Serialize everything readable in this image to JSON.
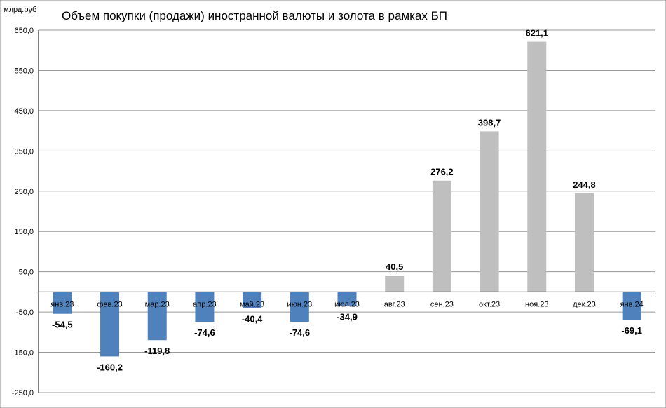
{
  "chart_data": {
    "type": "bar",
    "title": "Объем покупки (продажи) иностранной валюты и золота в рамках БП",
    "unit_label": "млрд.руб",
    "xlabel": "",
    "ylabel": "",
    "categories": [
      "янв.23",
      "фев.23",
      "мар.23",
      "апр.23",
      "май.23",
      "июн.23",
      "июл.23",
      "авг.23",
      "сен.23",
      "окт.23",
      "ноя.23",
      "дек.23",
      "янв.24"
    ],
    "values": [
      -54.5,
      -160.2,
      -119.8,
      -74.6,
      -40.4,
      -74.6,
      -34.9,
      40.5,
      276.2,
      398.7,
      621.1,
      244.8,
      -69.1
    ],
    "value_labels": [
      "-54,5",
      "-160,2",
      "-119,8",
      "-74,6",
      "-40,4",
      "-74,6",
      "-34,9",
      "40,5",
      "276,2",
      "398,7",
      "621,1",
      "244,8",
      "-69,1"
    ],
    "y_ticks": [
      650,
      550,
      450,
      350,
      250,
      150,
      50,
      -50,
      -150,
      -250
    ],
    "y_tick_labels": [
      "650,0",
      "550,0",
      "450,0",
      "350,0",
      "250,0",
      "150,0",
      "50,0",
      "-50,0",
      "-150,0",
      "-250,0"
    ],
    "ylim": [
      -250,
      650
    ],
    "grid": true,
    "legend": "none",
    "colors": {
      "negative": "#4F81BD",
      "positive": "#BFBFBF",
      "grid": "#9A9A9A",
      "axis": "#000000",
      "background": "#FFFFFF"
    }
  }
}
